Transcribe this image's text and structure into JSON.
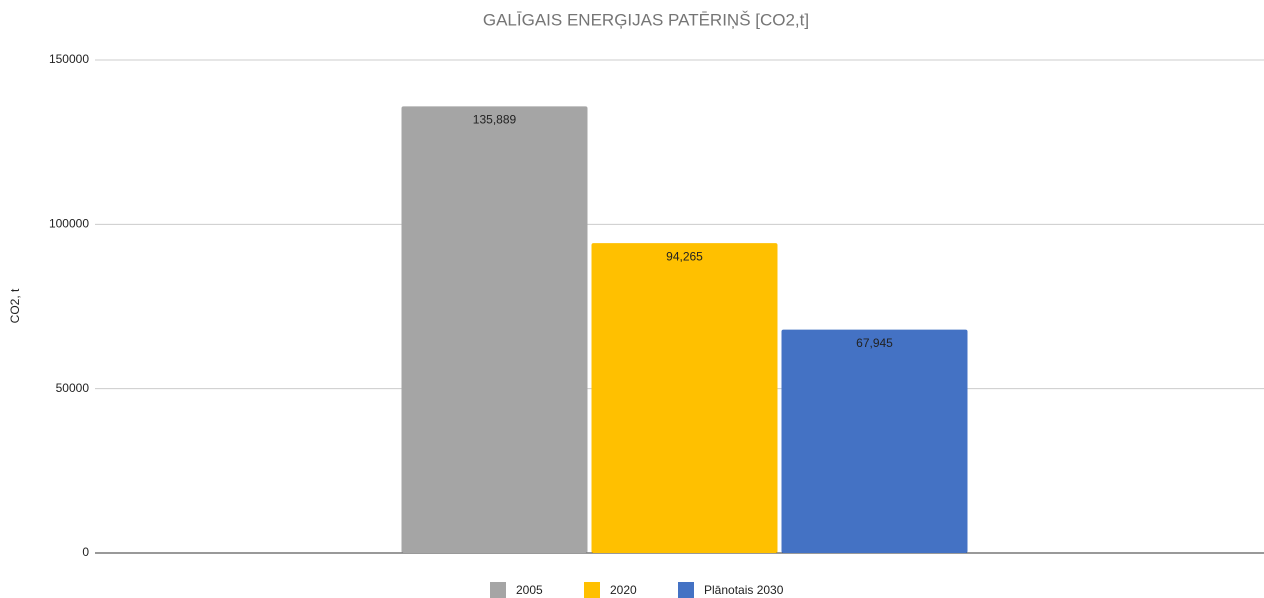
{
  "chart_data": {
    "type": "bar",
    "title": "GALĪGAIS ENERĢIJAS PATĒRIŅŠ [CO2,t]",
    "y_label": "CO2, t",
    "categories": [
      null
    ],
    "series": [
      {
        "name": "2005",
        "color": "#a5a5a5",
        "values": [
          135889
        ],
        "value_labels": [
          "135,889"
        ]
      },
      {
        "name": "2020",
        "color": "#ffc000",
        "values": [
          94265
        ],
        "value_labels": [
          "94,265"
        ]
      },
      {
        "name": "Plānotais 2030",
        "color": "#4472c4",
        "values": [
          67945
        ],
        "value_labels": [
          "67,945"
        ]
      }
    ],
    "ylim": [
      0,
      150000
    ],
    "yticks": [
      0,
      50000,
      100000,
      150000
    ],
    "grid": true,
    "legend": "bottom"
  }
}
